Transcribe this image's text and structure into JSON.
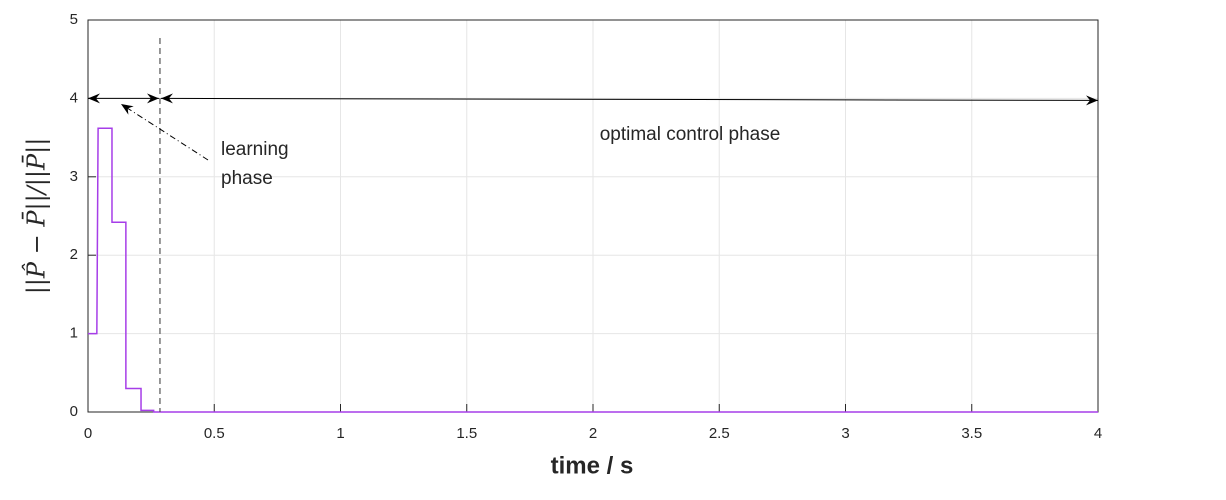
{
  "chart_data": {
    "type": "line",
    "xlabel": "time / s",
    "ylabel": "||P̂ − P̄||/||P̄||",
    "x": [
      0,
      0.035,
      0.04,
      0.095,
      0.095,
      0.15,
      0.15,
      0.21,
      0.21,
      0.26,
      0.26,
      4
    ],
    "values": [
      1,
      1,
      3.62,
      3.62,
      2.42,
      2.42,
      0.3,
      0.3,
      0.02,
      0.02,
      0,
      0
    ],
    "color": "#a63de8",
    "xlim": [
      0,
      4
    ],
    "ylim": [
      0,
      5
    ],
    "xticks": [
      0,
      0.5,
      1,
      1.5,
      2,
      2.5,
      3,
      3.5,
      4
    ],
    "yticks": [
      0,
      1,
      2,
      3,
      4,
      5
    ],
    "grid": true,
    "phase_boundary": 0.285,
    "arrow_y": 4,
    "annotations": [
      {
        "lines": [
          "learning",
          "phase"
        ]
      },
      {
        "lines": [
          "optimal control phase"
        ]
      }
    ]
  }
}
